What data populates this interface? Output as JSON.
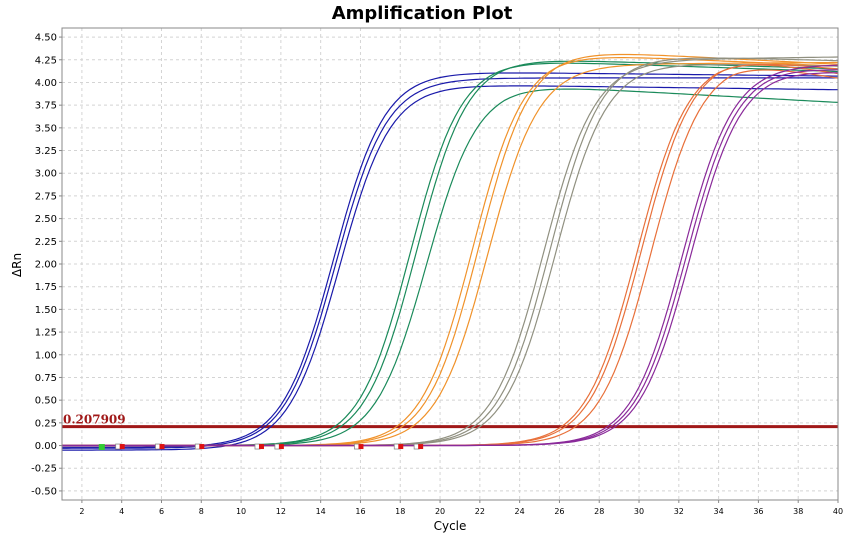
{
  "chart_data": {
    "type": "line",
    "title": "Amplification Plot",
    "xlabel": "Cycle",
    "ylabel": "ΔRn",
    "xlim": [
      1,
      40
    ],
    "ylim": [
      -0.6,
      4.6
    ],
    "xticks": [
      2,
      4,
      6,
      8,
      10,
      12,
      14,
      16,
      18,
      20,
      22,
      24,
      26,
      28,
      30,
      32,
      34,
      36,
      38,
      40
    ],
    "yticks": [
      -0.5,
      -0.25,
      0,
      0.25,
      0.5,
      0.75,
      1,
      1.25,
      1.5,
      1.75,
      2,
      2.25,
      2.5,
      2.75,
      3,
      3.25,
      3.5,
      3.75,
      4,
      4.25,
      4.5
    ],
    "ytick_labels": [
      "-0.50",
      "-0.25",
      "0.00",
      "0.25",
      "0.50",
      "0.75",
      "1.00",
      "1.25",
      "1.50",
      "1.75",
      "2.00",
      "2.25",
      "2.50",
      "2.75",
      "3.00",
      "3.25",
      "3.50",
      "3.75",
      "4.00",
      "4.25",
      "4.50"
    ],
    "grid": true,
    "threshold": {
      "value": 0.207909,
      "label": "0.207909",
      "color": "#a01818"
    },
    "baseline_markers": [
      {
        "x": 3,
        "color": "#33cc33"
      },
      {
        "x": 4,
        "color": "#dd1111"
      },
      {
        "x": 6,
        "color": "#dd1111"
      },
      {
        "x": 8,
        "color": "#dd1111"
      },
      {
        "x": 11,
        "color": "#dd1111"
      },
      {
        "x": 12,
        "color": "#dd1111"
      },
      {
        "x": 16,
        "color": "#dd1111"
      },
      {
        "x": 18,
        "color": "#dd1111"
      },
      {
        "x": 19,
        "color": "#dd1111"
      }
    ],
    "series": [
      {
        "color": "#1a1aaa",
        "ct": 11.2,
        "plateau": 4.05,
        "final": 4.05,
        "start": -0.03
      },
      {
        "color": "#1a1aaa",
        "ct": 11.5,
        "plateau": 3.98,
        "final": 3.92,
        "start": -0.05
      },
      {
        "color": "#1a1aaa",
        "ct": 11.0,
        "plateau": 4.12,
        "final": 4.07,
        "start": -0.02
      },
      {
        "color": "#1a8a5a",
        "ct": 14.7,
        "plateau": 4.25,
        "final": 4.12,
        "start": 0.0
      },
      {
        "color": "#1a8a5a",
        "ct": 15.0,
        "plateau": 4.27,
        "final": 4.15,
        "start": 0.0
      },
      {
        "color": "#1a8a5a",
        "ct": 15.6,
        "plateau": 3.98,
        "final": 3.78,
        "start": 0.0
      },
      {
        "color": "#f0922a",
        "ct": 17.8,
        "plateau": 4.32,
        "final": 4.18,
        "start": 0.0
      },
      {
        "color": "#f0922a",
        "ct": 18.1,
        "plateau": 4.36,
        "final": 4.2,
        "start": 0.0
      },
      {
        "color": "#f0922a",
        "ct": 18.6,
        "plateau": 4.2,
        "final": 4.22,
        "start": 0.0
      },
      {
        "color": "#909080",
        "ct": 21.4,
        "plateau": 4.25,
        "final": 4.28,
        "start": 0.0
      },
      {
        "color": "#909080",
        "ct": 21.7,
        "plateau": 4.3,
        "final": 4.24,
        "start": 0.0
      },
      {
        "color": "#909080",
        "ct": 22.0,
        "plateau": 4.22,
        "final": 4.18,
        "start": 0.0
      },
      {
        "color": "#e8703a",
        "ct": 26.1,
        "plateau": 4.28,
        "final": 4.15,
        "start": 0.0
      },
      {
        "color": "#e8703a",
        "ct": 26.3,
        "plateau": 4.3,
        "final": 4.1,
        "start": 0.0
      },
      {
        "color": "#e8703a",
        "ct": 26.8,
        "plateau": 4.25,
        "final": 4.05,
        "start": 0.0
      },
      {
        "color": "#8a2a9a",
        "ct": 28.4,
        "plateau": 4.2,
        "final": 4.2,
        "start": 0.0
      },
      {
        "color": "#8a2a9a",
        "ct": 28.6,
        "plateau": 4.18,
        "final": 4.15,
        "start": 0.0
      },
      {
        "color": "#8a2a9a",
        "ct": 28.8,
        "plateau": 4.15,
        "final": 4.12,
        "start": 0.0
      }
    ]
  }
}
